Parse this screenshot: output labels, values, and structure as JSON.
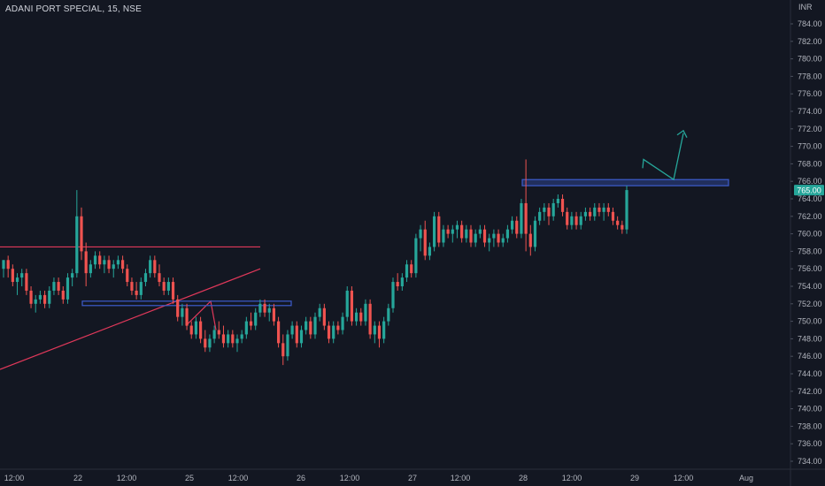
{
  "header": {
    "title": "ADANI PORT SPECIAL, 15, NSE"
  },
  "chart_data": {
    "type": "candlestick",
    "symbol": "ADANI PORT SPECIAL",
    "interval": "15",
    "exchange": "NSE",
    "currency": "INR",
    "last_price": "765.00",
    "ylim": [
      733,
      786
    ],
    "y_ticks": [
      "784.00",
      "782.00",
      "780.00",
      "778.00",
      "776.00",
      "774.00",
      "772.00",
      "770.00",
      "768.00",
      "766.00",
      "764.00",
      "762.00",
      "760.00",
      "758.00",
      "756.00",
      "754.00",
      "752.00",
      "750.00",
      "748.00",
      "746.00",
      "744.00",
      "742.00",
      "740.00",
      "738.00",
      "736.00",
      "734.00"
    ],
    "x_ticks": [
      "12:00",
      "22",
      "12:00",
      "25",
      "12:00",
      "26",
      "12:00",
      "27",
      "12:00",
      "28",
      "12:00",
      "29",
      "12:00",
      "Aug"
    ],
    "colors": {
      "background": "#131722",
      "up": "#26a69a",
      "down": "#ef5350",
      "trendline": "#e0385a",
      "zone": "#3d5ccc",
      "arrow": "#26a69a",
      "price_label": "#26a69a",
      "axis_text": "#b2b5be",
      "border": "#2a2e39"
    },
    "candles": [
      [
        756,
        757,
        755,
        757
      ],
      [
        757,
        757.5,
        755,
        756
      ],
      [
        756,
        756.5,
        754,
        754.5
      ],
      [
        754.5,
        755.5,
        753,
        755
      ],
      [
        755,
        756,
        754,
        755.5
      ],
      [
        755.5,
        756,
        753,
        753.5
      ],
      [
        753.5,
        754,
        751.5,
        752
      ],
      [
        752,
        753,
        751,
        752.5
      ],
      [
        752.5,
        753.5,
        752,
        753
      ],
      [
        753,
        753.5,
        751.5,
        752
      ],
      [
        752,
        754,
        751.5,
        753.5
      ],
      [
        753.5,
        755,
        753,
        754.5
      ],
      [
        754.5,
        755,
        753,
        753.5
      ],
      [
        753.5,
        754,
        752,
        752.5
      ],
      [
        752.5,
        755.5,
        752,
        755
      ],
      [
        755,
        756,
        754,
        755.5
      ],
      [
        755.5,
        765,
        755,
        762
      ],
      [
        762,
        763,
        757,
        758
      ],
      [
        758,
        759,
        754,
        755.5
      ],
      [
        755.5,
        757,
        755,
        756.5
      ],
      [
        756.5,
        758,
        756,
        757.5
      ],
      [
        757.5,
        758,
        756,
        756.5
      ],
      [
        756.5,
        757.5,
        755.5,
        757
      ],
      [
        757,
        757.5,
        755.5,
        756
      ],
      [
        756,
        757,
        755,
        756.5
      ],
      [
        756.5,
        757.5,
        756,
        757
      ],
      [
        757,
        757.5,
        755.5,
        756
      ],
      [
        756,
        756.5,
        754,
        754.5
      ],
      [
        754.5,
        755,
        753,
        753.5
      ],
      [
        753.5,
        754.5,
        752.5,
        753
      ],
      [
        753,
        755,
        752.5,
        754.5
      ],
      [
        754.5,
        756,
        754,
        755.5
      ],
      [
        755.5,
        757.5,
        755,
        757
      ],
      [
        757,
        757.5,
        755,
        755.5
      ],
      [
        755.5,
        756.5,
        754,
        754.5
      ],
      [
        754.5,
        755,
        753,
        753.5
      ],
      [
        753.5,
        755,
        753,
        754.5
      ],
      [
        754.5,
        755,
        752,
        752.5
      ],
      [
        752.5,
        753,
        750,
        750.5
      ],
      [
        750.5,
        752,
        749.5,
        751.5
      ],
      [
        751.5,
        752,
        749,
        749.5
      ],
      [
        749.5,
        750,
        748,
        748.5
      ],
      [
        748.5,
        750.5,
        748,
        750
      ],
      [
        750,
        750.5,
        747.5,
        748
      ],
      [
        748,
        749,
        746.5,
        747
      ],
      [
        747,
        748.5,
        746.5,
        748
      ],
      [
        748,
        749.5,
        747.5,
        749
      ],
      [
        749,
        750,
        748,
        748.5
      ],
      [
        748.5,
        749.5,
        747,
        747.5
      ],
      [
        747.5,
        749,
        747,
        748.5
      ],
      [
        748.5,
        749,
        747,
        747.5
      ],
      [
        747.5,
        748.5,
        746.5,
        748
      ],
      [
        748,
        749,
        747.5,
        748.5
      ],
      [
        748.5,
        750.5,
        748,
        750
      ],
      [
        750,
        751,
        749,
        749.5
      ],
      [
        749.5,
        751.5,
        749,
        751
      ],
      [
        751,
        752.5,
        750.5,
        752
      ],
      [
        752,
        752.5,
        750.5,
        751
      ],
      [
        751,
        752,
        750,
        751.5
      ],
      [
        751.5,
        752,
        749.5,
        750
      ],
      [
        750,
        750.5,
        747,
        747.5
      ],
      [
        747.5,
        748.5,
        745,
        746
      ],
      [
        746,
        749,
        745.5,
        748.5
      ],
      [
        748.5,
        750,
        748,
        749.5
      ],
      [
        749.5,
        750,
        747,
        747.5
      ],
      [
        747.5,
        749.5,
        747,
        749
      ],
      [
        749,
        750.5,
        748.5,
        750
      ],
      [
        750,
        750.5,
        748,
        748.5
      ],
      [
        748.5,
        751,
        748,
        750.5
      ],
      [
        750.5,
        752,
        750,
        751.5
      ],
      [
        751.5,
        752,
        749,
        749.5
      ],
      [
        749.5,
        750,
        747.5,
        748
      ],
      [
        748,
        750,
        747.5,
        749.5
      ],
      [
        749.5,
        750,
        748.5,
        749
      ],
      [
        749,
        751,
        748.5,
        750.5
      ],
      [
        750.5,
        754,
        750,
        753.5
      ],
      [
        753.5,
        754,
        749.5,
        750
      ],
      [
        750,
        751.5,
        749.5,
        751
      ],
      [
        751,
        751.5,
        749.5,
        750
      ],
      [
        750,
        752.5,
        749.5,
        752
      ],
      [
        752,
        752.5,
        748,
        748.5
      ],
      [
        748.5,
        750,
        747.5,
        749.5
      ],
      [
        749.5,
        750,
        747,
        748
      ],
      [
        748,
        750.5,
        747.5,
        750
      ],
      [
        750,
        752,
        749.5,
        751.5
      ],
      [
        751.5,
        755,
        751,
        754.5
      ],
      [
        754.5,
        755.5,
        753.5,
        754
      ],
      [
        754,
        755.5,
        753.5,
        755
      ],
      [
        755,
        757,
        754.5,
        756.5
      ],
      [
        756.5,
        757,
        755,
        755.5
      ],
      [
        755.5,
        760,
        755,
        759.5
      ],
      [
        759.5,
        761,
        758,
        760.5
      ],
      [
        760.5,
        761.5,
        757,
        757.5
      ],
      [
        757.5,
        759,
        757,
        758.5
      ],
      [
        758.5,
        762.5,
        758,
        762
      ],
      [
        762,
        762.5,
        758.5,
        759
      ],
      [
        759,
        761,
        758.5,
        760.5
      ],
      [
        760.5,
        761,
        759.5,
        760
      ],
      [
        760,
        761,
        759,
        760.5
      ],
      [
        760.5,
        761.5,
        759.5,
        761
      ],
      [
        761,
        761.5,
        759,
        759.5
      ],
      [
        759.5,
        761,
        759,
        760.5
      ],
      [
        760.5,
        761,
        758.5,
        759
      ],
      [
        759,
        760.5,
        758.5,
        760
      ],
      [
        760,
        761,
        759.5,
        760.5
      ],
      [
        760.5,
        761,
        758.5,
        759
      ],
      [
        759,
        760,
        758,
        759.5
      ],
      [
        759.5,
        760.5,
        758.5,
        760
      ],
      [
        760,
        760.5,
        758.5,
        759
      ],
      [
        759,
        760,
        758.5,
        759.5
      ],
      [
        759.5,
        761,
        759,
        760.5
      ],
      [
        760.5,
        762,
        760,
        761.5
      ],
      [
        761.5,
        762,
        759.5,
        760
      ],
      [
        760,
        764,
        759.5,
        763.5
      ],
      [
        763.5,
        768.5,
        758,
        760
      ],
      [
        760,
        761,
        757.5,
        758.5
      ],
      [
        758.5,
        762,
        758,
        761.5
      ],
      [
        761.5,
        763,
        761,
        762.5
      ],
      [
        762.5,
        763.5,
        761.5,
        763
      ],
      [
        763,
        763.5,
        761,
        762
      ],
      [
        762,
        764,
        761.5,
        763.5
      ],
      [
        763.5,
        764.5,
        763,
        764
      ],
      [
        764,
        764.5,
        762,
        762.5
      ],
      [
        762.5,
        763,
        760.5,
        761
      ],
      [
        761,
        762.5,
        760.5,
        762
      ],
      [
        762,
        762.5,
        760.5,
        761
      ],
      [
        761,
        762.5,
        760.5,
        762
      ],
      [
        762,
        763,
        761.5,
        762.5
      ],
      [
        762.5,
        763,
        761.5,
        762
      ],
      [
        762,
        763.5,
        761.5,
        763
      ],
      [
        763,
        763.5,
        762,
        762.5
      ],
      [
        762.5,
        763.5,
        761.5,
        763
      ],
      [
        763,
        763.5,
        762,
        762.5
      ],
      [
        762.5,
        763,
        761,
        761.5
      ],
      [
        761.5,
        762,
        760.5,
        761
      ],
      [
        761,
        761.5,
        760,
        760.5
      ],
      [
        760.5,
        765.5,
        760,
        765
      ]
    ]
  }
}
